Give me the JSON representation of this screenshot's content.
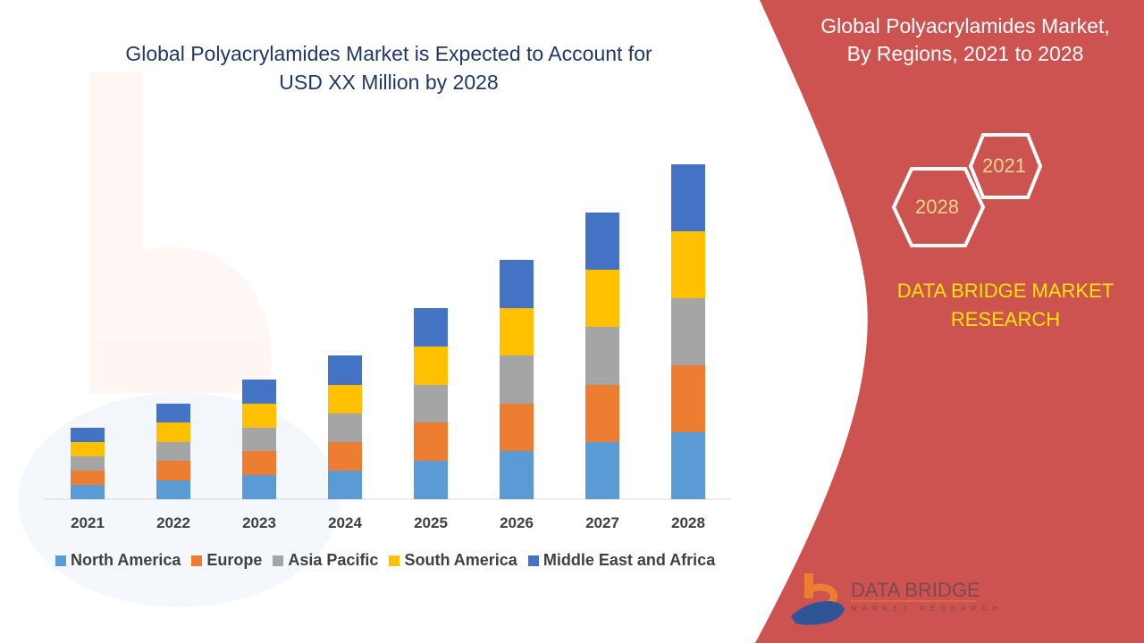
{
  "title": "Global Polyacrylamides Market is Expected to Account for USD XX Million by 2028",
  "title_lines": [
    "Global Polyacrylamides Market is Expected to Account for",
    "USD XX Million by 2028"
  ],
  "side_panel": {
    "title_lines": [
      "Global Polyacrylamides Market,",
      "By Regions, 2021 to 2028"
    ],
    "hex_labels": [
      "2021",
      "2028"
    ],
    "brand_lines": [
      "DATA BRIDGE MARKET",
      "RESEARCH"
    ],
    "logo_text": "DATA BRIDGE",
    "logo_subtext": "MARKET RESEARCH",
    "panel_color": "#CD5350",
    "brand_color": "#FFE600"
  },
  "chart_data": {
    "type": "bar",
    "stacked": true,
    "categories": [
      "2021",
      "2022",
      "2023",
      "2024",
      "2025",
      "2026",
      "2027",
      "2028"
    ],
    "series": [
      {
        "name": "North America",
        "color": "#5B9BD5",
        "values": [
          16,
          21,
          27,
          32,
          43,
          54,
          64,
          75
        ]
      },
      {
        "name": "Europe",
        "color": "#ED7D31",
        "values": [
          16,
          22,
          27,
          32,
          43,
          53,
          64,
          75
        ]
      },
      {
        "name": "Asia Pacific",
        "color": "#A5A5A5",
        "values": [
          16,
          21,
          26,
          32,
          42,
          54,
          65,
          75
        ]
      },
      {
        "name": "South America",
        "color": "#FFC000",
        "values": [
          16,
          22,
          27,
          32,
          43,
          53,
          64,
          75
        ]
      },
      {
        "name": "Middle East and Africa",
        "color": "#4472C4",
        "values": [
          16,
          21,
          27,
          33,
          43,
          54,
          64,
          75
        ]
      }
    ],
    "ylim": [
      0,
      380
    ],
    "y_axis_shown": false,
    "grid": false,
    "legend_position": "bottom"
  }
}
